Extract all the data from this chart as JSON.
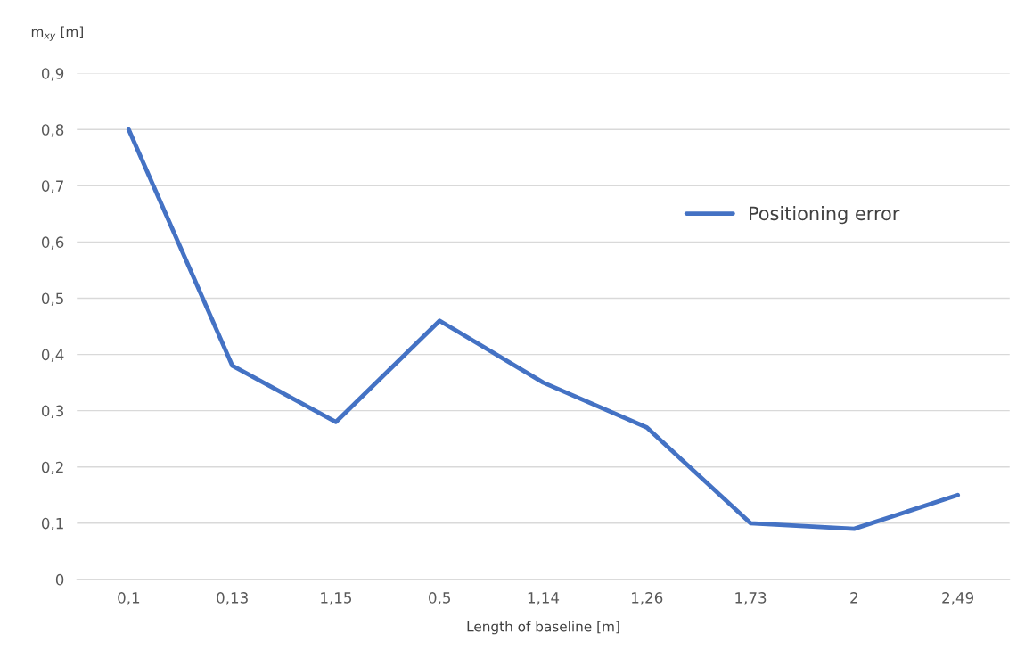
{
  "chart_data": {
    "type": "line",
    "xlabel": "Length of baseline [m]",
    "ylabel": "m$_{xy}$ [m]",
    "categories": [
      "0,1",
      "0,13",
      "1,15",
      "0,5",
      "1,14",
      "1,26",
      "1,73",
      "2",
      "2,49"
    ],
    "series": [
      {
        "name": "Positioning error",
        "color": "#4472c4",
        "values": [
          0.8,
          0.38,
          0.28,
          0.46,
          0.35,
          0.27,
          0.1,
          0.09,
          0.15
        ]
      }
    ],
    "ylim": [
      0,
      0.9
    ],
    "yticks": [
      0,
      {
        "value": 0.1,
        "label": "0,1"
      },
      {
        "value": 0.2,
        "label": "0,2"
      },
      {
        "value": 0.3,
        "label": "0,3"
      },
      {
        "value": 0.4,
        "label": "0,4"
      },
      {
        "value": 0.5,
        "label": "0,5"
      },
      {
        "value": 0.6,
        "label": "0,6"
      },
      {
        "value": 0.7,
        "label": "0,7"
      },
      {
        "value": 0.8,
        "label": "0,8"
      },
      {
        "value": 0.9,
        "label": "0,9"
      }
    ],
    "grid": "y",
    "legend": "right",
    "marker": "none",
    "line_style": "solid"
  }
}
